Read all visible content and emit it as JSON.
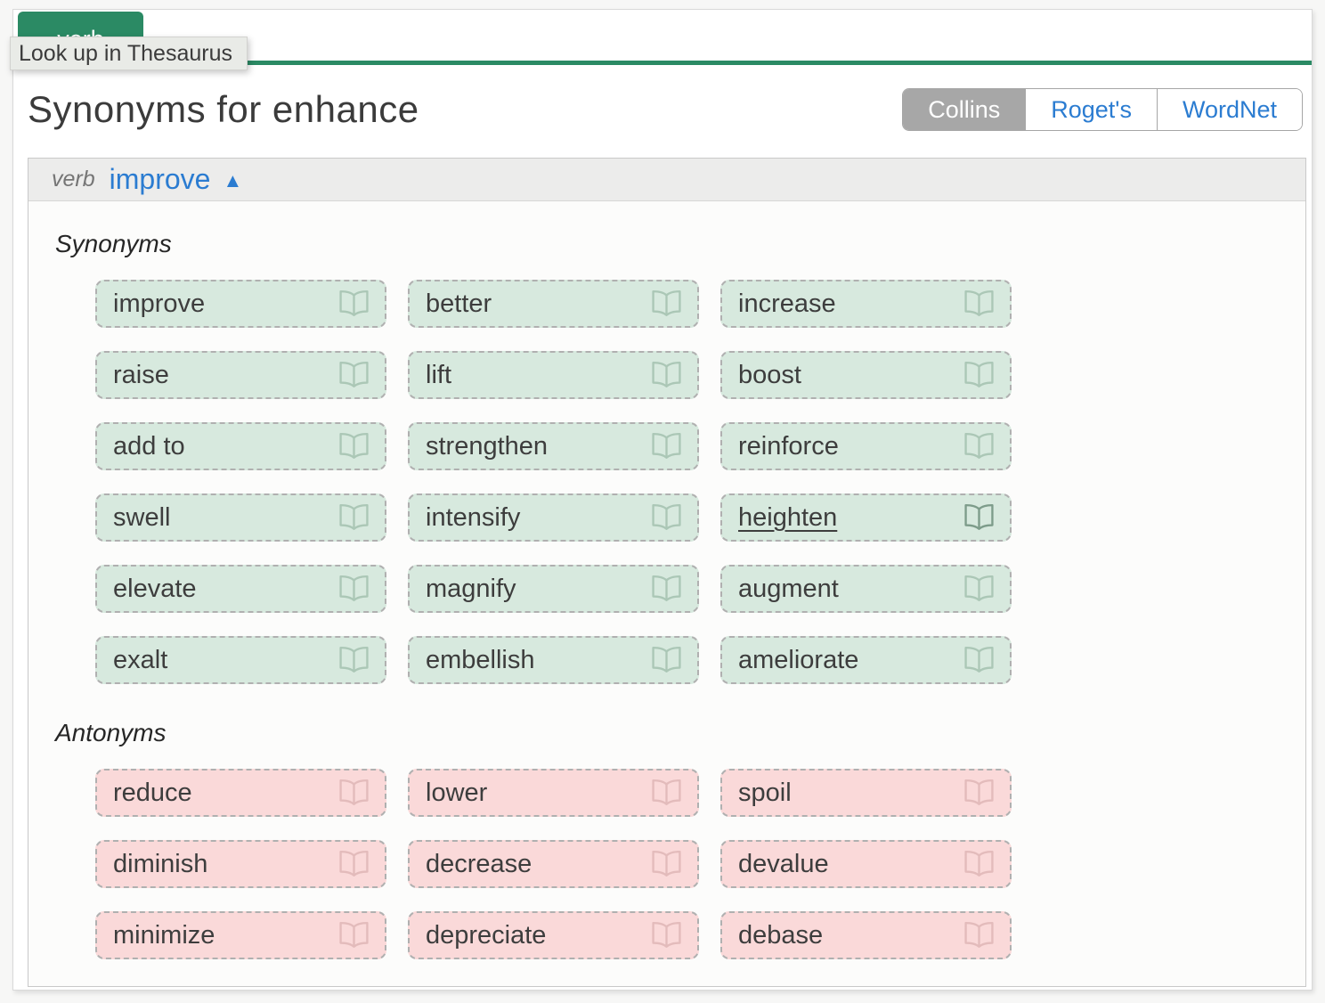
{
  "tooltip": {
    "text": "Look up in Thesaurus"
  },
  "top_tab": {
    "label": "verb"
  },
  "header": {
    "title": "Synonyms for enhance"
  },
  "tabs": [
    {
      "label": "Collins",
      "active": true
    },
    {
      "label": "Roget's",
      "active": false
    },
    {
      "label": "WordNet",
      "active": false
    }
  ],
  "entry": {
    "pos": "verb",
    "word": "improve",
    "collapse_icon": "▲"
  },
  "sections": [
    {
      "label": "Synonyms",
      "type": "synonym",
      "words": [
        "improve",
        "better",
        "increase",
        "raise",
        "lift",
        "boost",
        "add to",
        "strengthen",
        "reinforce",
        "swell",
        "intensify",
        "heighten",
        "elevate",
        "magnify",
        "augment",
        "exalt",
        "embellish",
        "ameliorate"
      ]
    },
    {
      "label": "Antonyms",
      "type": "antonym",
      "words": [
        "reduce",
        "lower",
        "spoil",
        "diminish",
        "decrease",
        "devalue",
        "minimize",
        "depreciate",
        "debase"
      ]
    }
  ],
  "hovered_word": "heighten",
  "colors": {
    "accent_green": "#2b8a64",
    "link_blue": "#2b7cd1",
    "active_tab_gray": "#a7a7a7",
    "synonym_chip_bg": "#d7e9de",
    "antonym_chip_bg": "#fad9d9"
  }
}
